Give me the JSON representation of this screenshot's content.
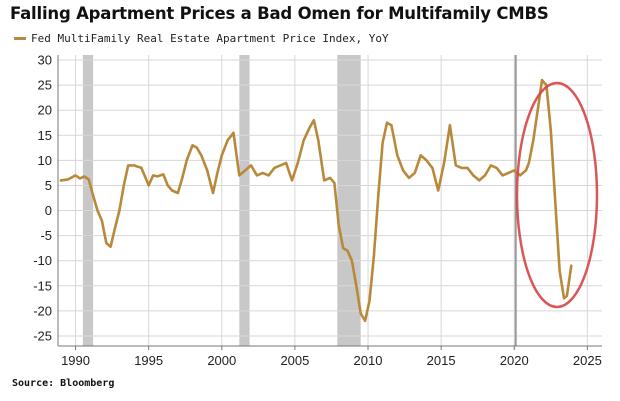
{
  "title": "Falling Apartment Prices a Bad Omen for Multifamily CMBS",
  "source": "Source: Bloomberg",
  "colors": {
    "series": "#b8893a",
    "recession": "#c8c8c8",
    "highlight": "#d64545",
    "grid": "#d7d7d7"
  },
  "chart_data": {
    "type": "line",
    "title": "Falling Apartment Prices a Bad Omen for Multifamily CMBS",
    "xlabel": "",
    "ylabel": "",
    "xlim": [
      1988.8,
      2026
    ],
    "ylim": [
      -27,
      31
    ],
    "x_ticks": [
      1990,
      1995,
      2000,
      2005,
      2010,
      2015,
      2020,
      2025
    ],
    "y_ticks": [
      30,
      25,
      20,
      15,
      10,
      5,
      0,
      -5,
      -10,
      -15,
      -20,
      -25
    ],
    "grid": true,
    "legend_position": "top-left",
    "recession_bands": [
      [
        1990.5,
        1991.2
      ],
      [
        2001.2,
        2001.9
      ],
      [
        2007.9,
        2009.5
      ]
    ],
    "marker_line_x": 2020.1,
    "series": [
      {
        "name": "Fed MultiFamily Real Estate Apartment Price Index, YoY",
        "x": [
          1989.0,
          1989.5,
          1990.0,
          1990.3,
          1990.6,
          1990.9,
          1991.2,
          1991.5,
          1991.8,
          1992.1,
          1992.4,
          1992.7,
          1993.0,
          1993.3,
          1993.6,
          1994.0,
          1994.5,
          1995.0,
          1995.3,
          1995.6,
          1996.0,
          1996.3,
          1996.6,
          1997.0,
          1997.3,
          1997.6,
          1998.0,
          1998.3,
          1998.6,
          1999.0,
          1999.4,
          1999.7,
          2000.0,
          2000.4,
          2000.8,
          2001.2,
          2001.6,
          2002.0,
          2002.4,
          2002.8,
          2003.2,
          2003.6,
          2004.0,
          2004.4,
          2004.8,
          2005.2,
          2005.6,
          2006.0,
          2006.3,
          2006.6,
          2007.0,
          2007.4,
          2007.7,
          2008.0,
          2008.3,
          2008.6,
          2008.9,
          2009.2,
          2009.5,
          2009.8,
          2010.1,
          2010.4,
          2010.7,
          2011.0,
          2011.3,
          2011.6,
          2012.0,
          2012.4,
          2012.8,
          2013.2,
          2013.6,
          2014.0,
          2014.4,
          2014.8,
          2015.2,
          2015.6,
          2016.0,
          2016.4,
          2016.8,
          2017.2,
          2017.6,
          2018.0,
          2018.4,
          2018.8,
          2019.2,
          2019.6,
          2020.0,
          2020.4,
          2020.8,
          2021.0,
          2021.3,
          2021.6,
          2021.9,
          2022.2,
          2022.5,
          2022.8,
          2023.1,
          2023.4,
          2023.6,
          2023.9
        ],
        "y": [
          6.0,
          6.2,
          7.0,
          6.4,
          6.8,
          6.2,
          3.0,
          0.0,
          -2.0,
          -6.5,
          -7.2,
          -3.5,
          0.0,
          5.0,
          9.0,
          9.0,
          8.5,
          5.0,
          7.0,
          6.8,
          7.2,
          5.0,
          4.0,
          3.5,
          6.5,
          10.0,
          13.0,
          12.5,
          11.0,
          8.0,
          3.5,
          7.5,
          11.0,
          14.0,
          15.5,
          7.0,
          8.0,
          9.0,
          7.0,
          7.5,
          7.0,
          8.5,
          9.0,
          9.5,
          6.0,
          9.5,
          14.0,
          16.5,
          18.0,
          14.0,
          6.0,
          6.5,
          5.5,
          -3.0,
          -7.5,
          -8.0,
          -10.0,
          -15.0,
          -20.5,
          -22.0,
          -18.0,
          -9.0,
          3.0,
          13.5,
          17.5,
          17.0,
          11.0,
          8.0,
          6.5,
          7.5,
          11.0,
          10.0,
          8.5,
          4.0,
          9.5,
          17.0,
          9.0,
          8.5,
          8.5,
          7.0,
          6.0,
          7.0,
          9.0,
          8.5,
          7.0,
          7.5,
          8.0,
          7.0,
          8.0,
          9.5,
          14.0,
          20.0,
          26.0,
          25.0,
          16.0,
          2.0,
          -12.0,
          -17.5,
          -17.0,
          -11.0
        ]
      }
    ]
  }
}
